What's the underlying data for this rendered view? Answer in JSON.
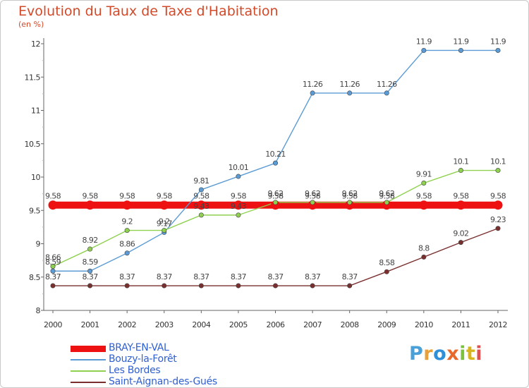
{
  "title": "Evolution du Taux de Taxe d'Habitation",
  "subtitle": "(en %)",
  "logo": {
    "text": "Proxiti",
    "letters": [
      {
        "ch": "P",
        "color": "#4aa0d8"
      },
      {
        "ch": "r",
        "color": "#e8a13a"
      },
      {
        "ch": "o",
        "color": "#2f8fd8"
      },
      {
        "ch": "x",
        "color": "#e86a2a"
      },
      {
        "ch": "i",
        "color": "#7cc23f"
      },
      {
        "ch": "t",
        "color": "#d8b41e"
      },
      {
        "ch": "i",
        "color": "#e05050"
      }
    ]
  },
  "chart_data": {
    "type": "line",
    "x": [
      "2000",
      "2001",
      "2002",
      "2003",
      "2004",
      "2005",
      "2006",
      "2007",
      "2008",
      "2009",
      "2010",
      "2011",
      "2012"
    ],
    "ylim": [
      8,
      12
    ],
    "yticks": [
      "8",
      "8.5",
      "9",
      "9.5",
      "10",
      "10.5",
      "11",
      "11.5",
      "12"
    ],
    "grid": false,
    "legend_position": "bottom-left",
    "series": [
      {
        "name": "BRAY-EN-VAL",
        "color": "#ee1111",
        "thick": true,
        "values": [
          9.58,
          9.58,
          9.58,
          9.58,
          9.58,
          9.58,
          9.58,
          9.58,
          9.58,
          9.58,
          9.58,
          9.58,
          9.58
        ],
        "labels": [
          "9.58",
          "9.58",
          "9.58",
          "9.58",
          "9.58",
          "9.58",
          "9.58",
          "9.58",
          "9.58",
          "9.58",
          "9.58",
          "9.58",
          "9.58"
        ]
      },
      {
        "name": "Bouzy-la-Forêt",
        "color": "#5b9bd5",
        "thick": false,
        "values": [
          8.59,
          8.59,
          8.86,
          9.17,
          9.81,
          10.01,
          10.21,
          11.26,
          11.26,
          11.26,
          11.9,
          11.9,
          11.9
        ],
        "labels": [
          "8.59",
          "8.59",
          "8.86",
          "9.17",
          "9.81",
          "10.01",
          "10.21",
          "11.26",
          "11.26",
          "11.26",
          "11.9",
          "11.9",
          "11.9"
        ]
      },
      {
        "name": "Les Bordes",
        "color": "#8fd14f",
        "thick": false,
        "values": [
          8.66,
          8.92,
          9.2,
          9.2,
          9.43,
          9.43,
          9.62,
          9.62,
          9.62,
          9.62,
          9.91,
          10.1,
          10.1
        ],
        "labels": [
          "8.66",
          "8.92",
          "9.2",
          "9.2",
          "9.43",
          "9.43",
          "9.62",
          "9.62",
          "9.62",
          "9.62",
          "9.91",
          "10.1",
          "10.1"
        ]
      },
      {
        "name": "Saint-Aignan-des-Gués",
        "color": "#7a2f2f",
        "thick": false,
        "values": [
          8.37,
          8.37,
          8.37,
          8.37,
          8.37,
          8.37,
          8.37,
          8.37,
          8.37,
          8.58,
          8.8,
          9.02,
          9.23
        ],
        "labels": [
          "8.37",
          "8.37",
          "8.37",
          "8.37",
          "8.37",
          "8.37",
          "8.37",
          "8.37",
          "8.37",
          "8.58",
          "8.8",
          "9.02",
          "9.23"
        ]
      }
    ]
  }
}
